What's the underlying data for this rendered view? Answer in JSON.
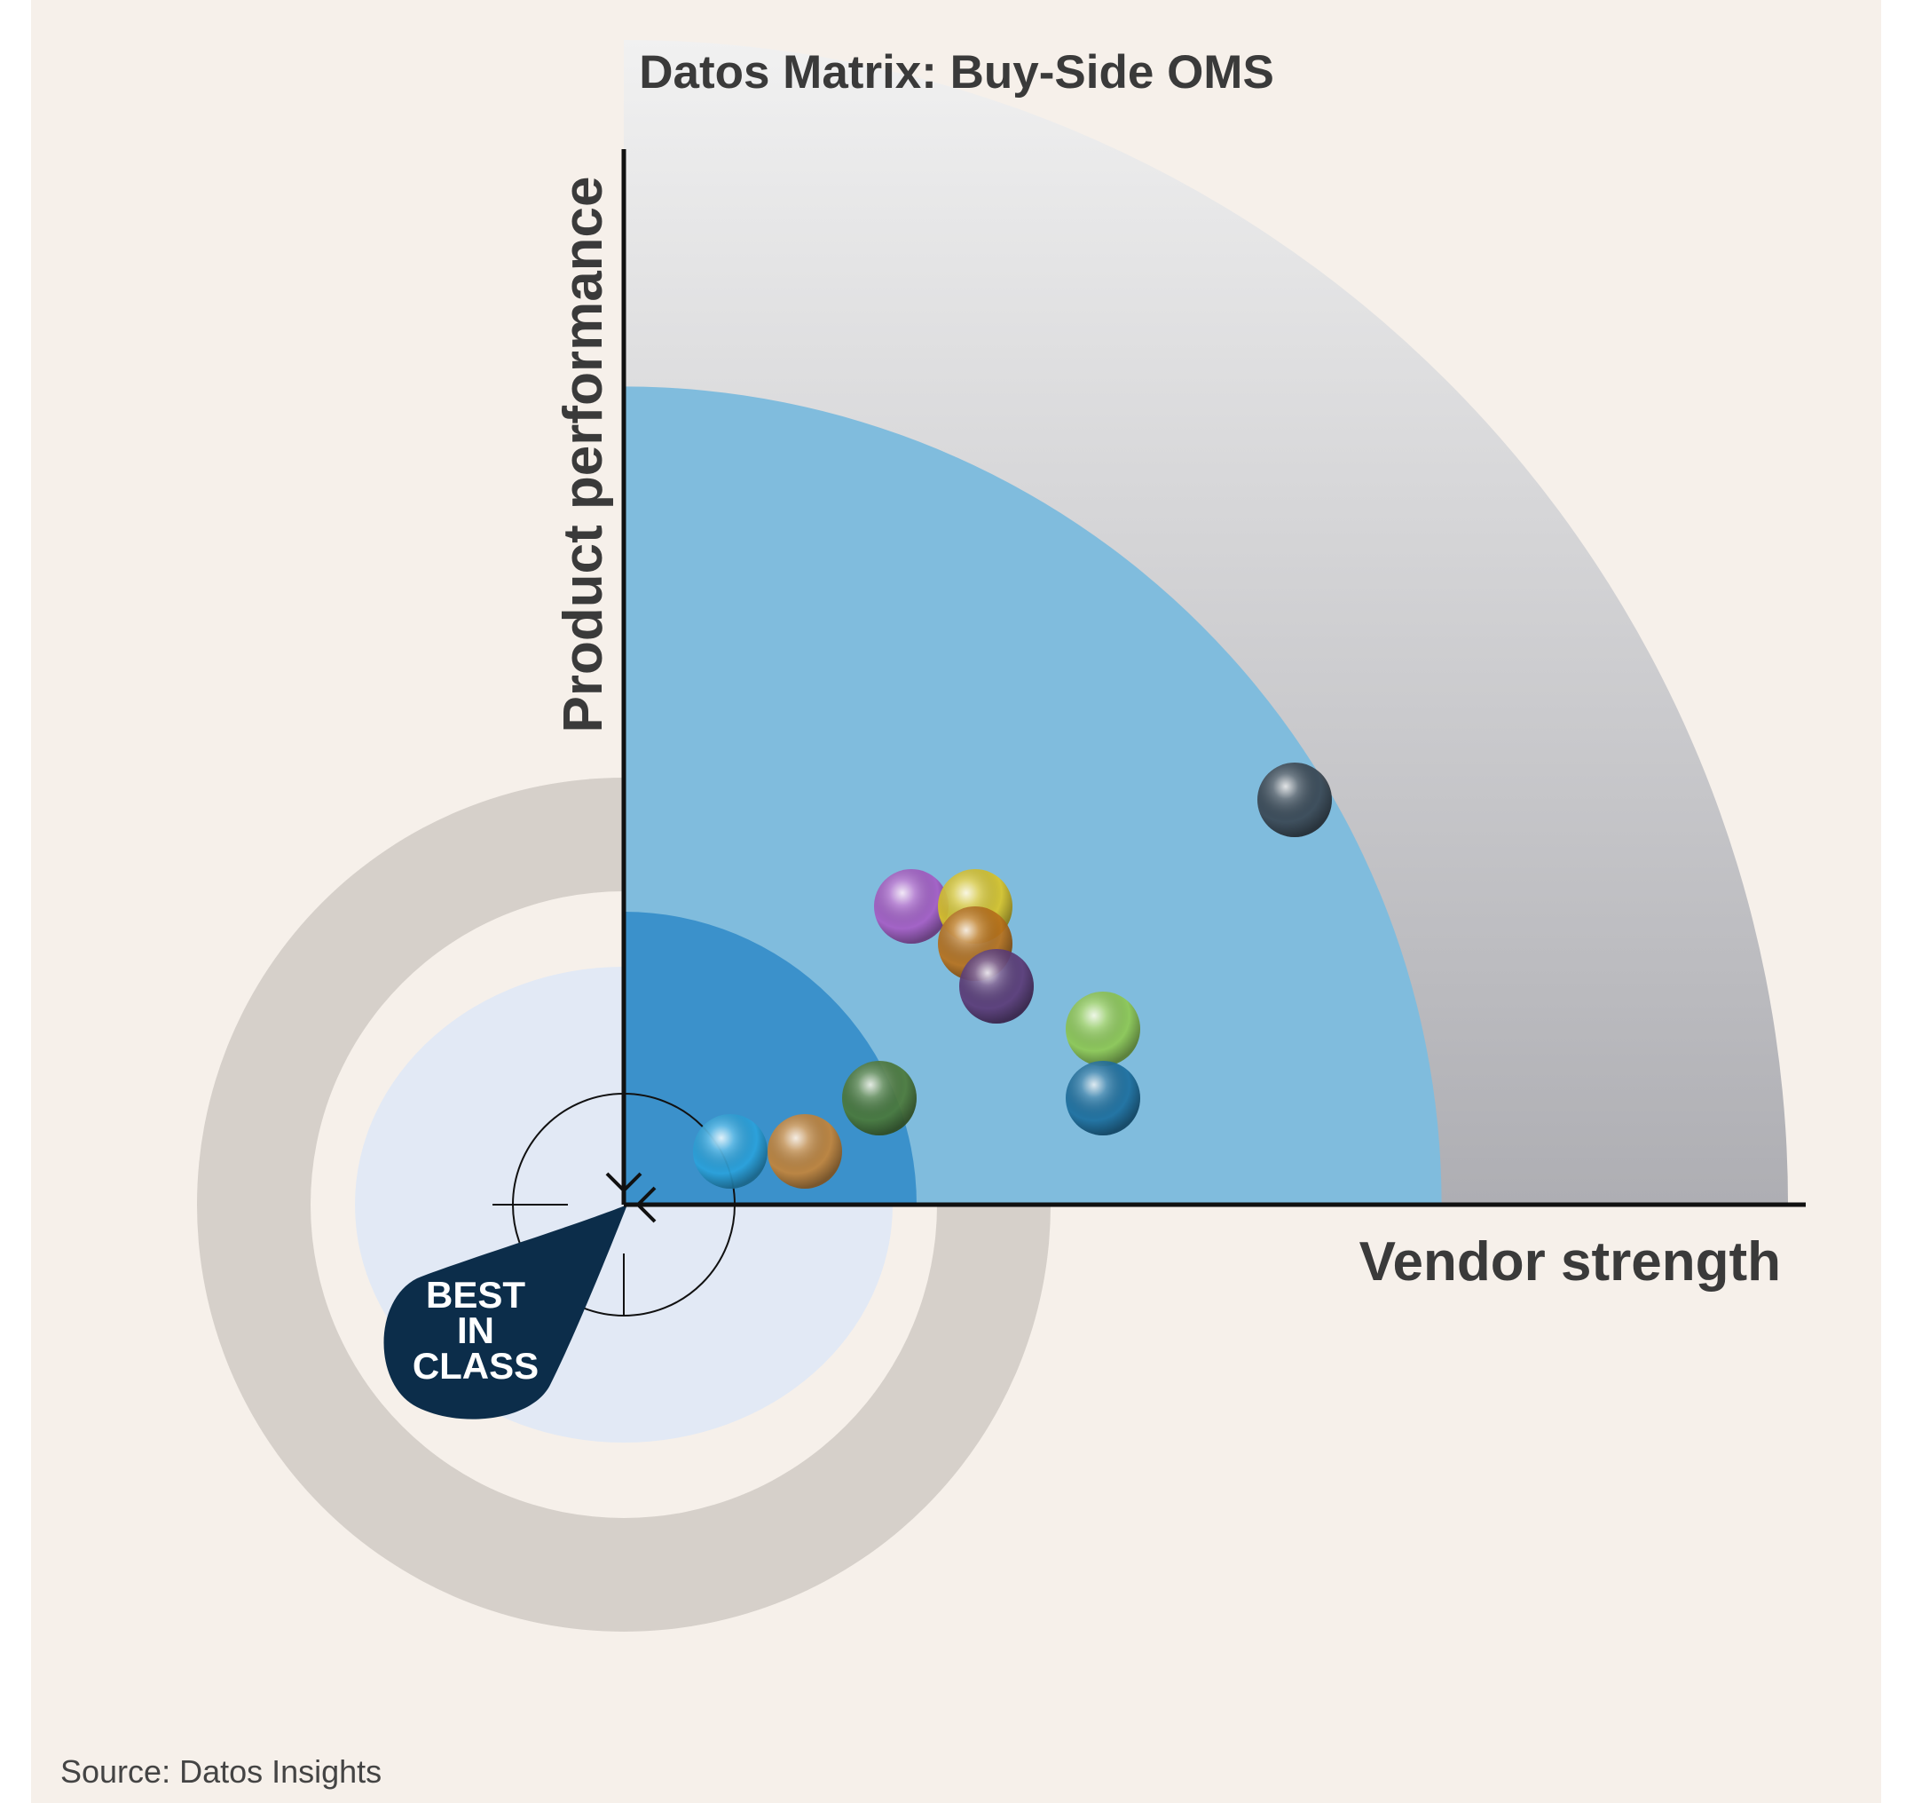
{
  "chart_data": {
    "type": "scatter",
    "title": "Datos Matrix: Buy-Side OMS",
    "xlabel": "Vendor strength",
    "ylabel": "Product performance",
    "source": "Source: Datos Insights",
    "badge": {
      "lines": [
        "BEST",
        "IN",
        "CLASS"
      ]
    },
    "zones": {
      "inner_radius": 0.25,
      "middle_radius": 0.64,
      "outer_radius": 1.11
    },
    "colors": {
      "background": "#f6f0ea",
      "outer_zone_top": "#f1f1f1",
      "outer_zone_bottom": "#aeaeb3",
      "middle_zone": "#80bcdd",
      "inner_zone": "#3b91cb",
      "halo_ring": "#d6d0ca",
      "halo_disc": "#e2e9f5",
      "badge": "#0c2d4a",
      "axis": "#111111"
    },
    "points": [
      {
        "x": 0.63,
        "y": 0.38,
        "color": "#3a4652"
      },
      {
        "x": 0.27,
        "y": 0.28,
        "color": "#a65cc4"
      },
      {
        "x": 0.33,
        "y": 0.28,
        "color": "#d9c42a"
      },
      {
        "x": 0.33,
        "y": 0.245,
        "color": "#b9711b"
      },
      {
        "x": 0.35,
        "y": 0.205,
        "color": "#5b3a76"
      },
      {
        "x": 0.45,
        "y": 0.165,
        "color": "#8fc953"
      },
      {
        "x": 0.45,
        "y": 0.1,
        "color": "#1c6f9e"
      },
      {
        "x": 0.24,
        "y": 0.1,
        "color": "#4c7a3a"
      },
      {
        "x": 0.1,
        "y": 0.05,
        "color": "#2ba3dc"
      },
      {
        "x": 0.17,
        "y": 0.05,
        "color": "#c7853a"
      }
    ]
  }
}
